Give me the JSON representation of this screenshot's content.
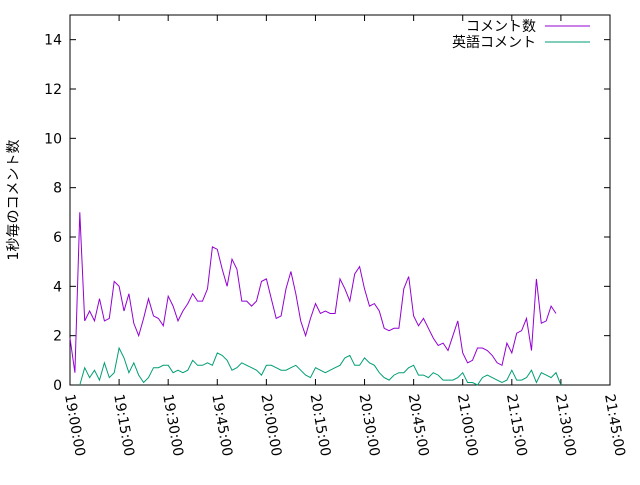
{
  "chart_data": {
    "type": "line",
    "title": "",
    "xlabel": "",
    "ylabel": "1秒毎のコメント数",
    "xlim": [
      "19:00:00",
      "21:45:00"
    ],
    "ylim": [
      0,
      15
    ],
    "xticks": [
      "19:00:00",
      "19:15:00",
      "19:30:00",
      "19:45:00",
      "20:00:00",
      "20:15:00",
      "20:30:00",
      "20:45:00",
      "21:00:00",
      "21:15:00",
      "21:30:00",
      "21:45:00"
    ],
    "yticks": [
      "0",
      "2",
      "4",
      "6",
      "8",
      "10",
      "12",
      "14"
    ],
    "grid": false,
    "legend_position": "top-right",
    "x_step_minutes": 1.5,
    "series": [
      {
        "name": "コメント数",
        "color": "#9400d3",
        "start": "19:00:00",
        "values": [
          1.9,
          0.5,
          7.0,
          2.6,
          3.0,
          2.6,
          3.5,
          2.6,
          2.7,
          4.2,
          4.0,
          3.0,
          3.7,
          2.5,
          2.0,
          2.7,
          3.5,
          2.8,
          2.7,
          2.4,
          3.6,
          3.2,
          2.6,
          3.0,
          3.3,
          3.7,
          3.4,
          3.4,
          3.9,
          5.6,
          5.5,
          4.7,
          4.0,
          5.1,
          4.7,
          3.4,
          3.4,
          3.2,
          3.4,
          4.2,
          4.3,
          3.5,
          2.7,
          2.8,
          3.9,
          4.6,
          3.7,
          2.6,
          2.0,
          2.7,
          3.3,
          2.9,
          3.0,
          2.9,
          2.9,
          4.3,
          3.9,
          3.4,
          4.5,
          4.8,
          3.9,
          3.2,
          3.3,
          3.0,
          2.3,
          2.2,
          2.3,
          2.3,
          3.9,
          4.4,
          2.8,
          2.4,
          2.7,
          2.3,
          1.9,
          1.6,
          1.7,
          1.4,
          2.0,
          2.6,
          1.3,
          0.9,
          1.0,
          1.5,
          1.5,
          1.4,
          1.2,
          0.9,
          0.8,
          1.7,
          1.3,
          2.1,
          2.2,
          2.7,
          1.4,
          4.3,
          2.5,
          2.6,
          3.2,
          2.9
        ]
      },
      {
        "name": "英語コメント",
        "color": "#009e73",
        "start": "19:03:00",
        "values": [
          0.0,
          0.7,
          0.3,
          0.6,
          0.2,
          0.9,
          0.3,
          0.5,
          1.5,
          1.1,
          0.5,
          0.9,
          0.4,
          0.1,
          0.3,
          0.7,
          0.7,
          0.8,
          0.8,
          0.5,
          0.6,
          0.5,
          0.6,
          1.0,
          0.8,
          0.8,
          0.9,
          0.8,
          1.3,
          1.2,
          1.0,
          0.6,
          0.7,
          0.9,
          0.8,
          0.7,
          0.6,
          0.4,
          0.8,
          0.8,
          0.7,
          0.6,
          0.6,
          0.7,
          0.8,
          0.6,
          0.4,
          0.3,
          0.7,
          0.6,
          0.5,
          0.6,
          0.7,
          0.8,
          1.1,
          1.2,
          0.8,
          0.8,
          1.1,
          0.9,
          0.8,
          0.5,
          0.3,
          0.2,
          0.4,
          0.5,
          0.5,
          0.7,
          0.8,
          0.4,
          0.4,
          0.3,
          0.5,
          0.4,
          0.2,
          0.2,
          0.2,
          0.3,
          0.5,
          0.1,
          0.1,
          0.0,
          0.3,
          0.4,
          0.3,
          0.2,
          0.1,
          0.2,
          0.6,
          0.2,
          0.2,
          0.3,
          0.6,
          0.1,
          0.5,
          0.4,
          0.3,
          0.5,
          0.0
        ]
      }
    ]
  }
}
